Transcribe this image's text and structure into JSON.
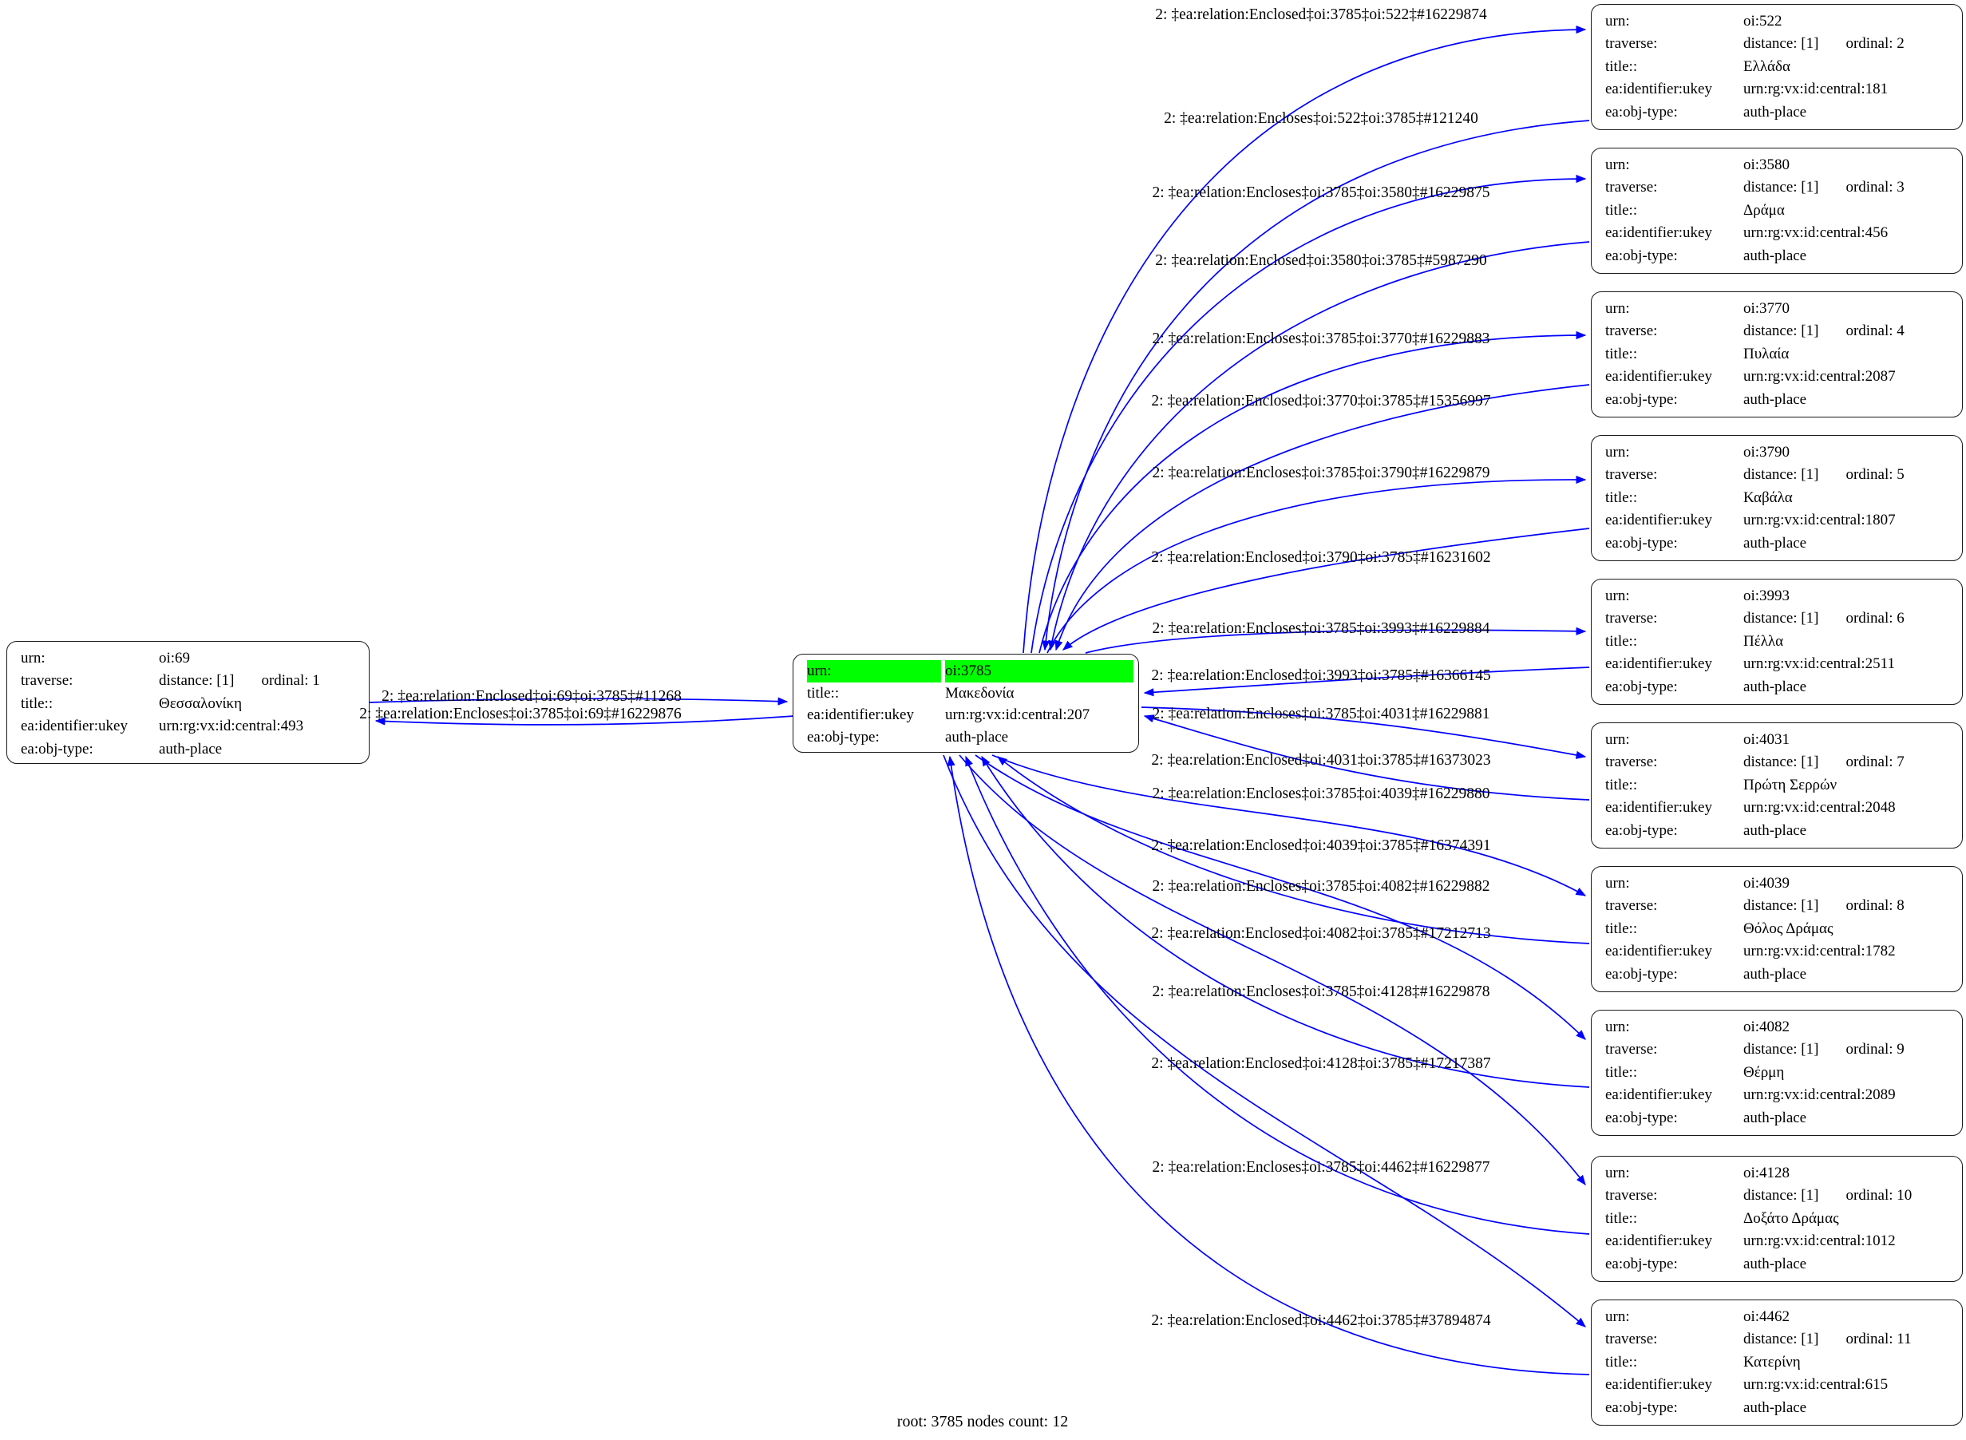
{
  "caption": "root: 3785 nodes count: 12",
  "colors": {
    "edge": "#0000ff",
    "highlight": "#00ff00",
    "node_border": "#1a1a1a",
    "background": "#ffffff"
  },
  "nodes": [
    {
      "id": "oi:69",
      "rows": [
        {
          "label": "urn:",
          "value": "oi:69"
        },
        {
          "label": "traverse:",
          "value": "distance: [1]",
          "value2": "ordinal: 1"
        },
        {
          "label": "title::",
          "value": "Θεσσαλονίκη"
        },
        {
          "label": "ea:identifier:ukey",
          "value": "urn:rg:vx:id:central:493"
        },
        {
          "label": "ea:obj-type:",
          "value": "auth-place"
        }
      ]
    },
    {
      "id": "oi:3785",
      "rows": [
        {
          "label": "urn:",
          "value": "oi:3785",
          "highlight": true
        },
        {
          "label": "title::",
          "value": "Μακεδονία"
        },
        {
          "label": "ea:identifier:ukey",
          "value": "urn:rg:vx:id:central:207"
        },
        {
          "label": "ea:obj-type:",
          "value": "auth-place"
        }
      ]
    },
    {
      "id": "oi:522",
      "rows": [
        {
          "label": "urn:",
          "value": "oi:522"
        },
        {
          "label": "traverse:",
          "value": "distance: [1]",
          "value2": "ordinal: 2"
        },
        {
          "label": "title::",
          "value": "Ελλάδα"
        },
        {
          "label": "ea:identifier:ukey",
          "value": "urn:rg:vx:id:central:181"
        },
        {
          "label": "ea:obj-type:",
          "value": "auth-place"
        }
      ]
    },
    {
      "id": "oi:3580",
      "rows": [
        {
          "label": "urn:",
          "value": "oi:3580"
        },
        {
          "label": "traverse:",
          "value": "distance: [1]",
          "value2": "ordinal: 3"
        },
        {
          "label": "title::",
          "value": "Δράμα"
        },
        {
          "label": "ea:identifier:ukey",
          "value": "urn:rg:vx:id:central:456"
        },
        {
          "label": "ea:obj-type:",
          "value": "auth-place"
        }
      ]
    },
    {
      "id": "oi:3770",
      "rows": [
        {
          "label": "urn:",
          "value": "oi:3770"
        },
        {
          "label": "traverse:",
          "value": "distance: [1]",
          "value2": "ordinal: 4"
        },
        {
          "label": "title::",
          "value": "Πυλαία"
        },
        {
          "label": "ea:identifier:ukey",
          "value": "urn:rg:vx:id:central:2087"
        },
        {
          "label": "ea:obj-type:",
          "value": "auth-place"
        }
      ]
    },
    {
      "id": "oi:3790",
      "rows": [
        {
          "label": "urn:",
          "value": "oi:3790"
        },
        {
          "label": "traverse:",
          "value": "distance: [1]",
          "value2": "ordinal: 5"
        },
        {
          "label": "title::",
          "value": "Καβάλα"
        },
        {
          "label": "ea:identifier:ukey",
          "value": "urn:rg:vx:id:central:1807"
        },
        {
          "label": "ea:obj-type:",
          "value": "auth-place"
        }
      ]
    },
    {
      "id": "oi:3993",
      "rows": [
        {
          "label": "urn:",
          "value": "oi:3993"
        },
        {
          "label": "traverse:",
          "value": "distance: [1]",
          "value2": "ordinal: 6"
        },
        {
          "label": "title::",
          "value": "Πέλλα"
        },
        {
          "label": "ea:identifier:ukey",
          "value": "urn:rg:vx:id:central:2511"
        },
        {
          "label": "ea:obj-type:",
          "value": "auth-place"
        }
      ]
    },
    {
      "id": "oi:4031",
      "rows": [
        {
          "label": "urn:",
          "value": "oi:4031"
        },
        {
          "label": "traverse:",
          "value": "distance: [1]",
          "value2": "ordinal: 7"
        },
        {
          "label": "title::",
          "value": "Πρώτη Σερρών"
        },
        {
          "label": "ea:identifier:ukey",
          "value": "urn:rg:vx:id:central:2048"
        },
        {
          "label": "ea:obj-type:",
          "value": "auth-place"
        }
      ]
    },
    {
      "id": "oi:4039",
      "rows": [
        {
          "label": "urn:",
          "value": "oi:4039"
        },
        {
          "label": "traverse:",
          "value": "distance: [1]",
          "value2": "ordinal: 8"
        },
        {
          "label": "title::",
          "value": "Θόλος Δράμας"
        },
        {
          "label": "ea:identifier:ukey",
          "value": "urn:rg:vx:id:central:1782"
        },
        {
          "label": "ea:obj-type:",
          "value": "auth-place"
        }
      ]
    },
    {
      "id": "oi:4082",
      "rows": [
        {
          "label": "urn:",
          "value": "oi:4082"
        },
        {
          "label": "traverse:",
          "value": "distance: [1]",
          "value2": "ordinal: 9"
        },
        {
          "label": "title::",
          "value": "Θέρμη"
        },
        {
          "label": "ea:identifier:ukey",
          "value": "urn:rg:vx:id:central:2089"
        },
        {
          "label": "ea:obj-type:",
          "value": "auth-place"
        }
      ]
    },
    {
      "id": "oi:4128",
      "rows": [
        {
          "label": "urn:",
          "value": "oi:4128"
        },
        {
          "label": "traverse:",
          "value": "distance: [1]",
          "value2": "ordinal: 10"
        },
        {
          "label": "title::",
          "value": "Δοξάτο Δράμας"
        },
        {
          "label": "ea:identifier:ukey",
          "value": "urn:rg:vx:id:central:1012"
        },
        {
          "label": "ea:obj-type:",
          "value": "auth-place"
        }
      ]
    },
    {
      "id": "oi:4462",
      "rows": [
        {
          "label": "urn:",
          "value": "oi:4462"
        },
        {
          "label": "traverse:",
          "value": "distance: [1]",
          "value2": "ordinal: 11"
        },
        {
          "label": "title::",
          "value": "Κατερίνη"
        },
        {
          "label": "ea:identifier:ukey",
          "value": "urn:rg:vx:id:central:615"
        },
        {
          "label": "ea:obj-type:",
          "value": "auth-place"
        }
      ]
    }
  ],
  "edges": [
    {
      "label": "2: ‡ea:relation:Enclosed‡oi:69‡oi:3785‡#11268"
    },
    {
      "label": "2: ‡ea:relation:Encloses‡oi:3785‡oi:69‡#16229876"
    },
    {
      "label": "2: ‡ea:relation:Enclosed‡oi:3785‡oi:522‡#16229874"
    },
    {
      "label": "2: ‡ea:relation:Encloses‡oi:522‡oi:3785‡#121240"
    },
    {
      "label": "2: ‡ea:relation:Encloses‡oi:3785‡oi:3580‡#16229875"
    },
    {
      "label": "2: ‡ea:relation:Enclosed‡oi:3580‡oi:3785‡#5987290"
    },
    {
      "label": "2: ‡ea:relation:Encloses‡oi:3785‡oi:3770‡#16229883"
    },
    {
      "label": "2: ‡ea:relation:Enclosed‡oi:3770‡oi:3785‡#15356997"
    },
    {
      "label": "2: ‡ea:relation:Encloses‡oi:3785‡oi:3790‡#16229879"
    },
    {
      "label": "2: ‡ea:relation:Enclosed‡oi:3790‡oi:3785‡#16231602"
    },
    {
      "label": "2: ‡ea:relation:Encloses‡oi:3785‡oi:3993‡#16229884"
    },
    {
      "label": "2: ‡ea:relation:Enclosed‡oi:3993‡oi:3785‡#16366145"
    },
    {
      "label": "2: ‡ea:relation:Encloses‡oi:3785‡oi:4031‡#16229881"
    },
    {
      "label": "2: ‡ea:relation:Enclosed‡oi:4031‡oi:3785‡#16373023"
    },
    {
      "label": "2: ‡ea:relation:Encloses‡oi:3785‡oi:4039‡#16229880"
    },
    {
      "label": "2: ‡ea:relation:Enclosed‡oi:4039‡oi:3785‡#16374391"
    },
    {
      "label": "2: ‡ea:relation:Encloses‡oi:3785‡oi:4082‡#16229882"
    },
    {
      "label": "2: ‡ea:relation:Enclosed‡oi:4082‡oi:3785‡#17212713"
    },
    {
      "label": "2: ‡ea:relation:Encloses‡oi:3785‡oi:4128‡#16229878"
    },
    {
      "label": "2: ‡ea:relation:Enclosed‡oi:4128‡oi:3785‡#17217387"
    },
    {
      "label": "2: ‡ea:relation:Encloses‡oi:3785‡oi:4462‡#16229877"
    },
    {
      "label": "2: ‡ea:relation:Enclosed‡oi:4462‡oi:3785‡#37894874"
    }
  ]
}
